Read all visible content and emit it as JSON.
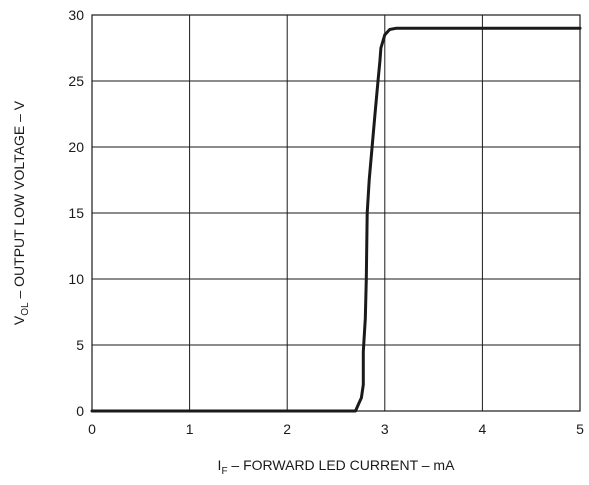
{
  "chart_data": {
    "type": "line",
    "xlabel": {
      "main": "I",
      "sub": "F",
      "rest": " – FORWARD LED CURRENT – mA"
    },
    "ylabel": {
      "main": "V",
      "sub": "OL",
      "rest": " – OUTPUT LOW VOLTAGE – V"
    },
    "xlim": [
      0,
      5
    ],
    "ylim": [
      0,
      30
    ],
    "xticks": [
      0,
      1,
      2,
      3,
      4,
      5
    ],
    "yticks": [
      0,
      5,
      10,
      15,
      20,
      25,
      30
    ],
    "grid": true,
    "series": [
      {
        "x": [
          0,
          2.15,
          2.7,
          2.73,
          2.76,
          2.78,
          2.78,
          2.8,
          2.81,
          2.82,
          2.84,
          2.87,
          2.9,
          2.93,
          2.95,
          2.96,
          3.0,
          3.05,
          3.12,
          3.5,
          4.0,
          5.0
        ],
        "y": [
          0,
          0,
          0,
          0.5,
          1.0,
          2.0,
          4.5,
          7.0,
          10.0,
          15.0,
          17.5,
          20.0,
          22.5,
          25.0,
          26.5,
          27.5,
          28.5,
          28.9,
          29.0,
          29.0,
          29.0,
          29.0
        ]
      }
    ]
  }
}
